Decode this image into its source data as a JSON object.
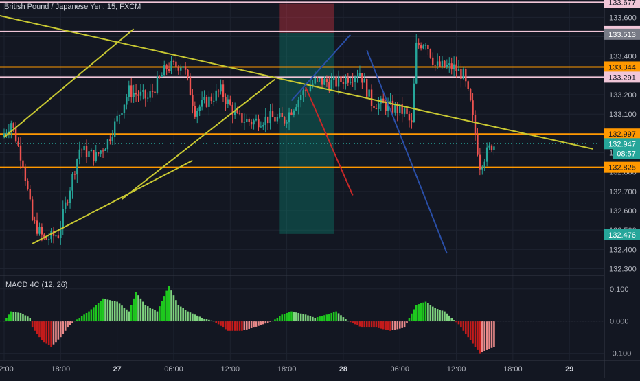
{
  "header": {
    "title": "British Pound / Japanese Yen, 15, FXCM"
  },
  "colors": {
    "background": "#131722",
    "grid": "#1e2330",
    "text": "#b2b5be",
    "candle_up": "#26a69a",
    "candle_down": "#ef5350",
    "trend_yellow": "#c8c832",
    "level_orange": "#ff9800",
    "level_pink": "#f1c6d8",
    "macd_pos_strong": "#1ec81e",
    "macd_pos_weak": "#7fd37f",
    "macd_neg_strong": "#c41b1b",
    "macd_neg_weak": "#e98a8a",
    "line_blue": "#2a4fa8",
    "line_red": "#c82828"
  },
  "chart_data": [
    {
      "type": "candlestick",
      "title": "British Pound / Japanese Yen, 15, FXCM",
      "ylim": [
        132.27,
        133.69
      ],
      "y_ticks": [
        "133.600",
        "133.500",
        "133.400",
        "133.300",
        "133.200",
        "133.100",
        "133.000",
        "132.900",
        "132.800",
        "132.700",
        "132.600",
        "132.500",
        "132.400",
        "132.300"
      ],
      "x_ticks": [
        "12:00",
        "18:00",
        "27",
        "06:00",
        "12:00",
        "18:00",
        "28",
        "06:00",
        "12:00",
        "18:00",
        "29"
      ],
      "x_tick_bars": [
        0,
        24,
        48,
        72,
        96,
        120,
        144,
        168,
        192,
        216,
        240
      ],
      "bar_count": 209,
      "price_path": [
        [
          0,
          132.98
        ],
        [
          4,
          133.06
        ],
        [
          9,
          132.85
        ],
        [
          13,
          132.55
        ],
        [
          18,
          132.45
        ],
        [
          24,
          132.48
        ],
        [
          33,
          132.92
        ],
        [
          40,
          132.88
        ],
        [
          45,
          132.96
        ],
        [
          54,
          133.22
        ],
        [
          62,
          133.18
        ],
        [
          70,
          133.34
        ],
        [
          77,
          133.36
        ],
        [
          82,
          133.12
        ],
        [
          93,
          133.22
        ],
        [
          100,
          133.08
        ],
        [
          106,
          133.06
        ],
        [
          114,
          133.08
        ],
        [
          120,
          133.07
        ],
        [
          127,
          133.2
        ],
        [
          133,
          133.27
        ],
        [
          142,
          133.26
        ],
        [
          152,
          133.32
        ],
        [
          157,
          133.16
        ],
        [
          164,
          133.14
        ],
        [
          171,
          133.11
        ],
        [
          174,
          133.04
        ],
        [
          176,
          133.45
        ],
        [
          180,
          133.48
        ],
        [
          184,
          133.35
        ],
        [
          192,
          133.34
        ],
        [
          196,
          133.3
        ],
        [
          199,
          133.15
        ],
        [
          203,
          132.84
        ],
        [
          208,
          132.94
        ]
      ],
      "levels": [
        {
          "label": "133.678",
          "value": 133.678,
          "style": "pink",
          "tag_bg": "#ef5350",
          "tag_fg": "#ffffff"
        },
        {
          "label": "133.677",
          "value": 133.677,
          "style": "none",
          "tag_bg": "#f1c6d8",
          "tag_fg": "#131722"
        },
        {
          "label": "133.527",
          "value": 133.527,
          "style": "pink",
          "tag_bg": "#f1c6d8",
          "tag_fg": "#131722"
        },
        {
          "label": "133.513",
          "value": 133.513,
          "style": "none",
          "tag_bg": "#787b86",
          "tag_fg": "#ffffff"
        },
        {
          "label": "133.344",
          "value": 133.344,
          "style": "orange",
          "tag_bg": "#ff9800",
          "tag_fg": "#131722"
        },
        {
          "label": "133.291",
          "value": 133.291,
          "style": "pink",
          "tag_bg": "#f1c6d8",
          "tag_fg": "#131722"
        },
        {
          "label": "132.997",
          "value": 132.997,
          "style": "orange",
          "tag_bg": "#ff9800",
          "tag_fg": "#131722"
        },
        {
          "label": "132.947",
          "value": 132.947,
          "style": "none",
          "tag_bg": "#26a69a",
          "tag_fg": "#ffffff"
        },
        {
          "label": "132.825",
          "value": 132.825,
          "style": "orange",
          "tag_bg": "#ff9800",
          "tag_fg": "#131722"
        },
        {
          "label": "132.476",
          "value": 132.476,
          "style": "none",
          "tag_bg": "#26a69a",
          "tag_fg": "#ffffff"
        }
      ],
      "countdown": "08:57",
      "trendlines": [
        {
          "name": "upper-resistance",
          "color": "yellow",
          "points": [
            [
              -6,
              133.62
            ],
            [
              250,
              132.92
            ]
          ]
        },
        {
          "name": "channel-lower-left",
          "color": "yellow",
          "points": [
            [
              0,
              132.98
            ],
            [
              55,
              133.54
            ]
          ]
        },
        {
          "name": "channel-upper-left",
          "color": "yellow",
          "points": [
            [
              12,
              132.43
            ],
            [
              80,
              132.86
            ]
          ]
        },
        {
          "name": "channel-lower-right",
          "color": "yellow",
          "points": [
            [
              50,
              132.66
            ],
            [
              115,
              133.28
            ]
          ]
        },
        {
          "name": "blue-up",
          "color": "blue",
          "points": [
            [
              122,
              133.17
            ],
            [
              147,
              133.51
            ]
          ]
        },
        {
          "name": "red-down",
          "color": "red",
          "points": [
            [
              128,
              133.24
            ],
            [
              148,
              132.68
            ]
          ]
        },
        {
          "name": "blue-down",
          "color": "blue",
          "points": [
            [
              154,
              133.43
            ],
            [
              188,
              132.38
            ]
          ]
        }
      ],
      "position_box": {
        "from_bar": 117,
        "to_bar": 140,
        "entry": 133.52,
        "target": 132.48,
        "stop": 133.67
      }
    },
    {
      "type": "bar",
      "title": "MACD 4C (12, 26)",
      "ylim": [
        -0.12,
        0.14
      ],
      "y_ticks": [
        "0.100",
        "0.000",
        "-0.100"
      ],
      "bar_count": 209,
      "path": [
        [
          0,
          0.0
        ],
        [
          3,
          0.03
        ],
        [
          7,
          0.025
        ],
        [
          11,
          0.01
        ],
        [
          12,
          -0.02
        ],
        [
          16,
          -0.06
        ],
        [
          20,
          -0.08
        ],
        [
          24,
          -0.05
        ],
        [
          27,
          -0.02
        ],
        [
          30,
          0.0
        ],
        [
          36,
          0.03
        ],
        [
          42,
          0.07
        ],
        [
          48,
          0.06
        ],
        [
          53,
          0.03
        ],
        [
          56,
          0.09
        ],
        [
          60,
          0.05
        ],
        [
          65,
          0.03
        ],
        [
          70,
          0.11
        ],
        [
          74,
          0.05
        ],
        [
          78,
          0.03
        ],
        [
          84,
          0.01
        ],
        [
          89,
          0.0
        ],
        [
          95,
          -0.03
        ],
        [
          101,
          -0.03
        ],
        [
          106,
          -0.02
        ],
        [
          110,
          -0.01
        ],
        [
          114,
          0.0
        ],
        [
          118,
          0.02
        ],
        [
          122,
          0.03
        ],
        [
          128,
          0.02
        ],
        [
          132,
          0.01
        ],
        [
          137,
          0.02
        ],
        [
          141,
          0.03
        ],
        [
          146,
          0.0
        ],
        [
          152,
          -0.02
        ],
        [
          158,
          -0.02
        ],
        [
          164,
          -0.03
        ],
        [
          170,
          -0.02
        ],
        [
          172,
          0.01
        ],
        [
          175,
          0.05
        ],
        [
          179,
          0.06
        ],
        [
          183,
          0.04
        ],
        [
          187,
          0.03
        ],
        [
          190,
          0.01
        ],
        [
          193,
          -0.01
        ],
        [
          198,
          -0.06
        ],
        [
          202,
          -0.1
        ],
        [
          208,
          -0.08
        ]
      ]
    }
  ]
}
